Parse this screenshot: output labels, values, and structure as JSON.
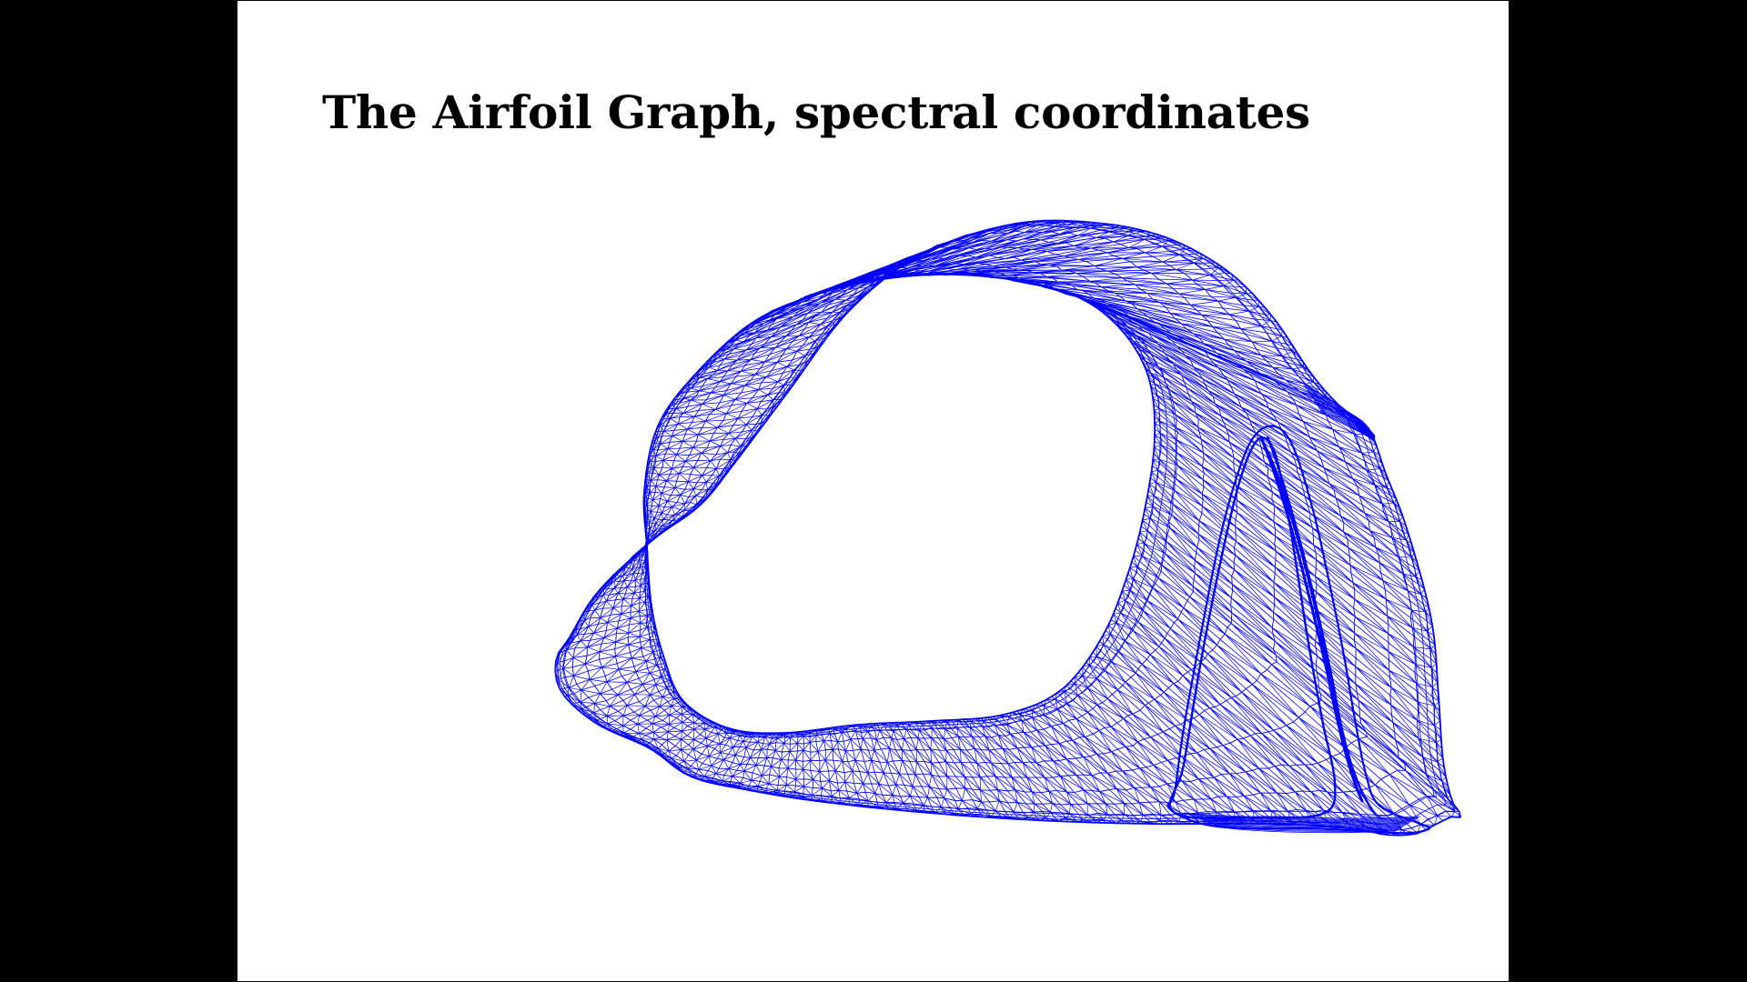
{
  "slide": {
    "title": "The Airfoil Graph, spectral coordinates"
  },
  "figure": {
    "kind": "mesh-drawing",
    "subject": "airfoil graph",
    "stroke_color": "#0000ff",
    "background_color": "#ffffff"
  },
  "frame": {
    "letterbox_color": "#000000"
  }
}
